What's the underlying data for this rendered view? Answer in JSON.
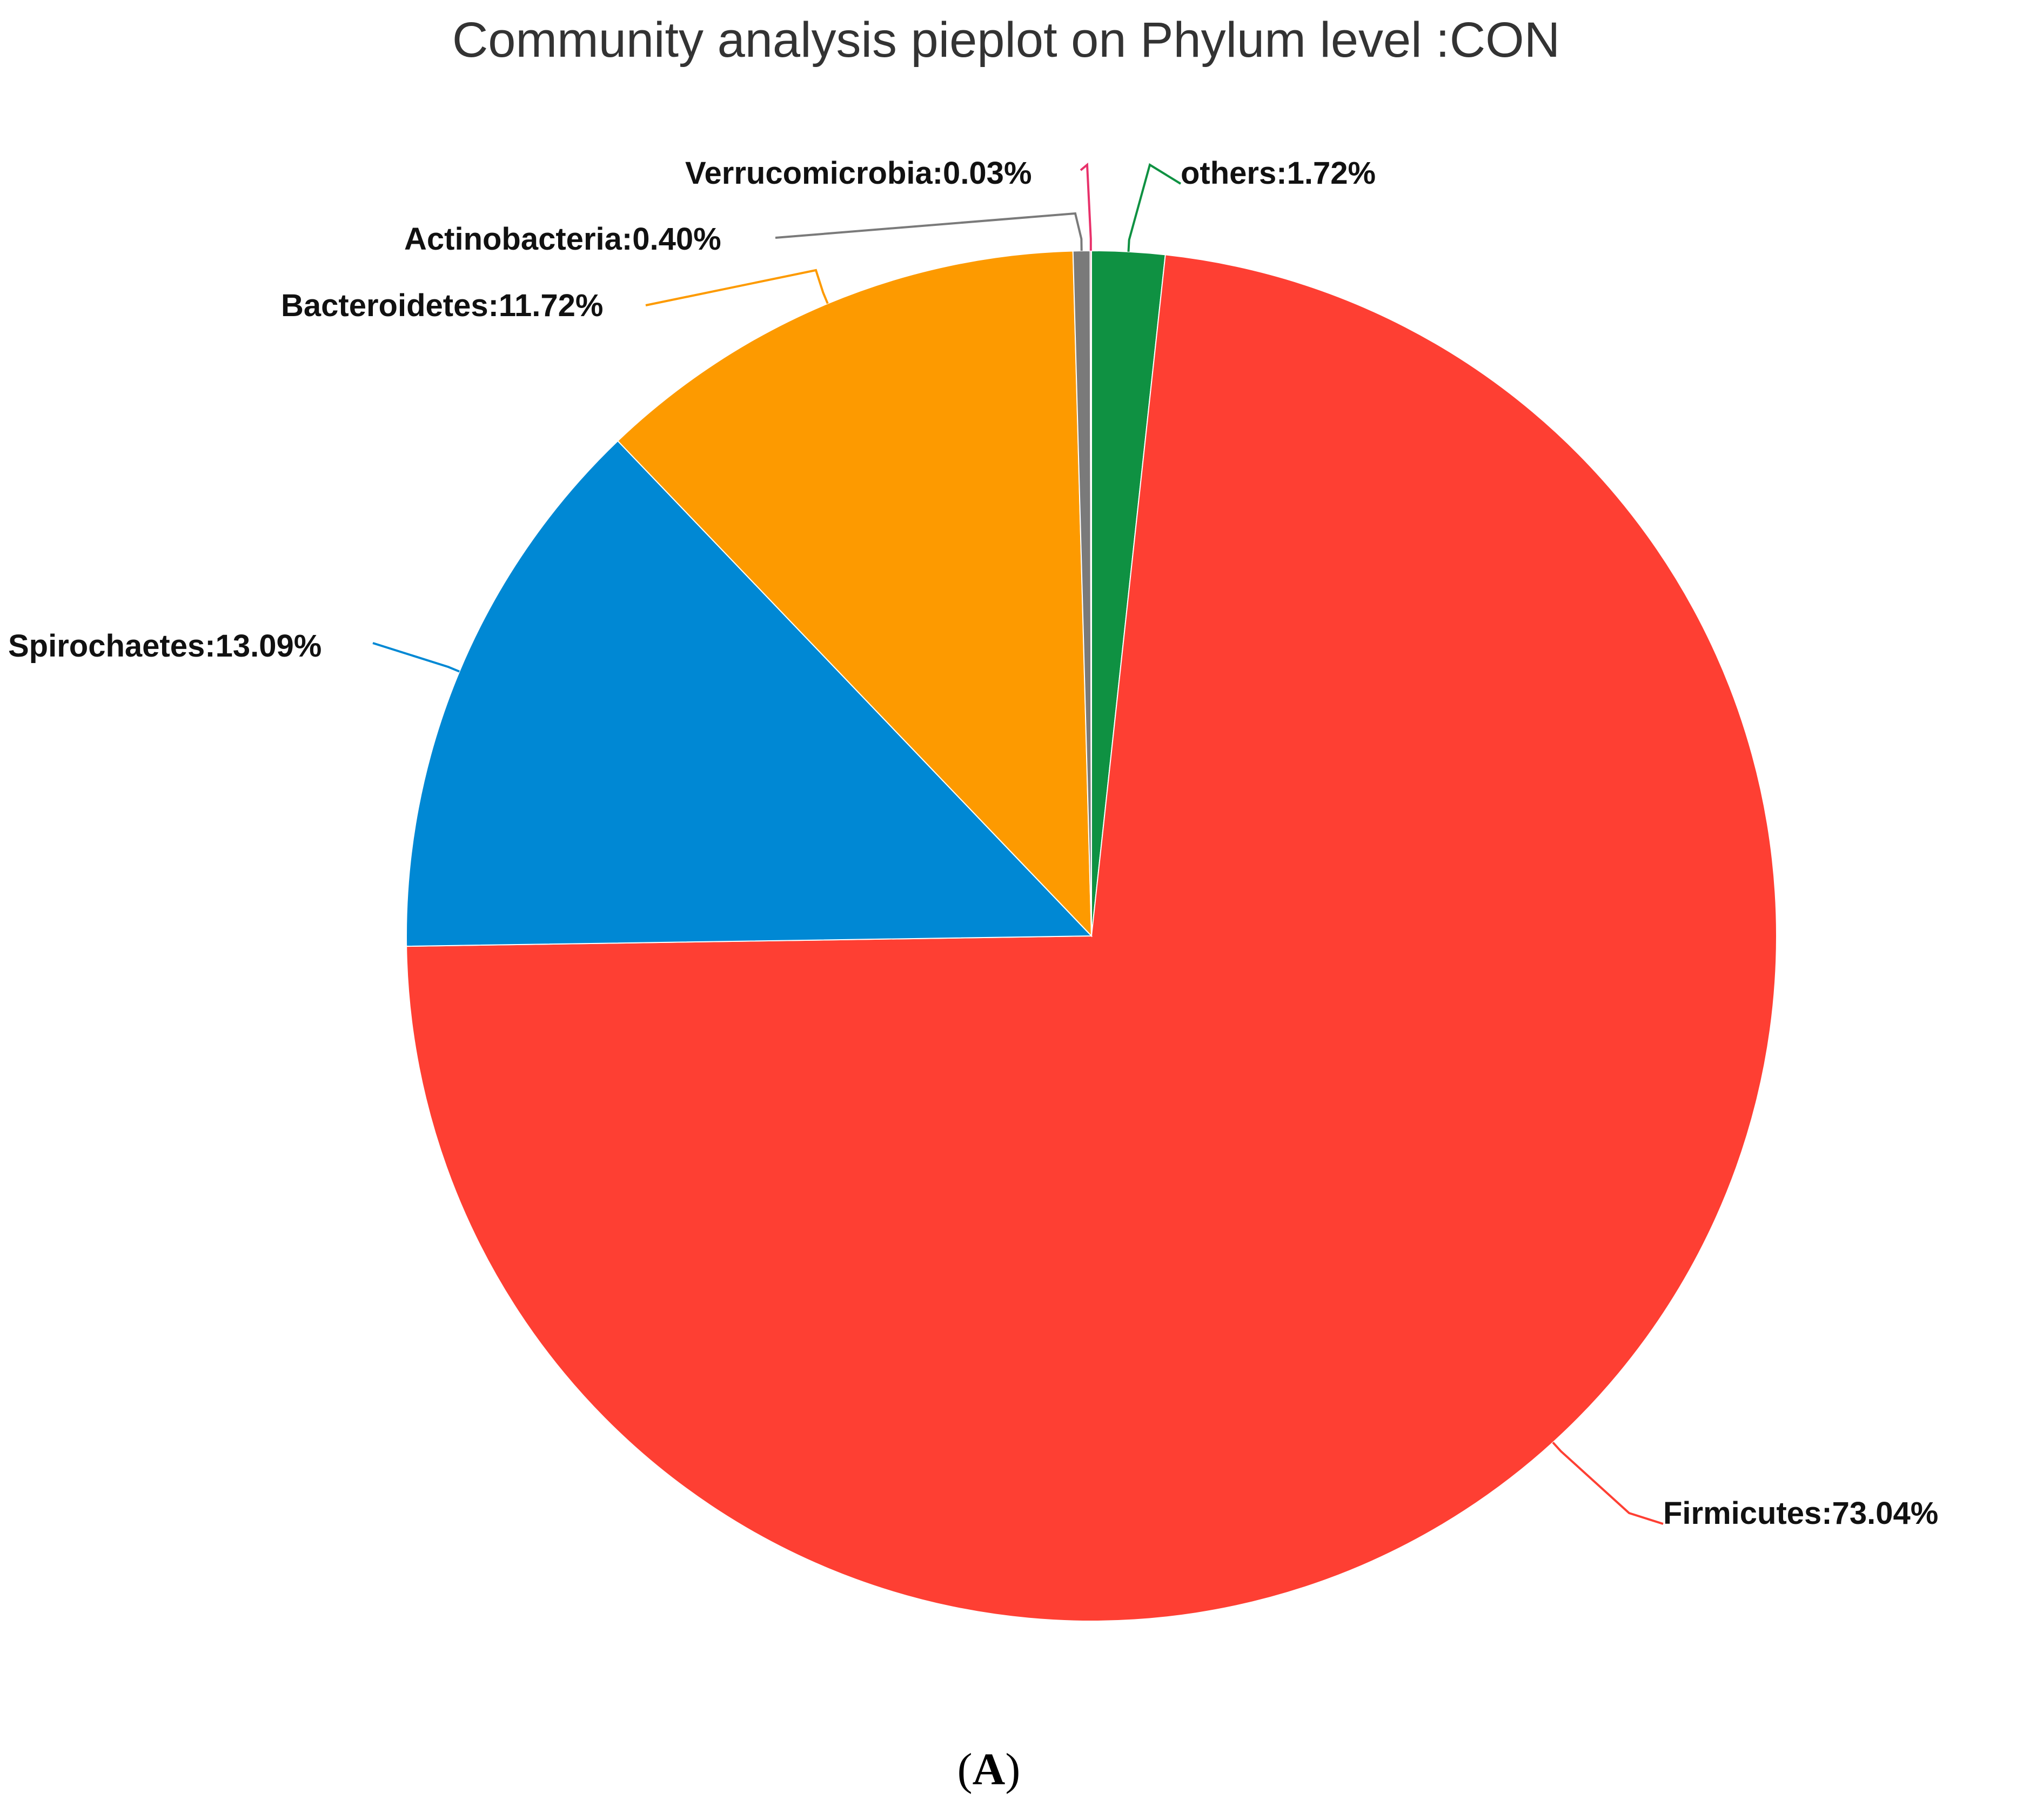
{
  "chart_data": {
    "type": "pie",
    "title": "Community analysis pieplot on Phylum level :CON",
    "panel_label": {
      "open": "(",
      "letter": "A",
      "close": ")"
    },
    "slices": [
      {
        "name": "others",
        "value": 1.72,
        "label": "others:1.72%",
        "color": "#0f9142"
      },
      {
        "name": "Firmicutes",
        "value": 73.04,
        "label": "Firmicutes:73.04%",
        "color": "#fe3f33"
      },
      {
        "name": "Spirochaetes",
        "value": 13.09,
        "label": "Spirochaetes:13.09%",
        "color": "#0088d4"
      },
      {
        "name": "Bacteroidetes",
        "value": 11.72,
        "label": "Bacteroidetes:11.72%",
        "color": "#fd9a00"
      },
      {
        "name": "Actinobacteria",
        "value": 0.4,
        "label": "Actinobacteria:0.40%",
        "color": "#7a7a7a"
      },
      {
        "name": "Verrucomicrobia",
        "value": 0.03,
        "label": "Verrucomicrobia:0.03%",
        "color": "#e8326b"
      }
    ],
    "start_angle_deg": 0,
    "direction": "clockwise",
    "legend": "none"
  }
}
